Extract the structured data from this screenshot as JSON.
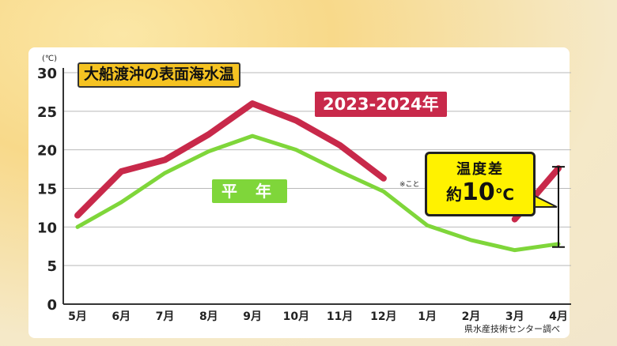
{
  "chart_data": {
    "type": "line",
    "title": "大船渡沖の表面海水温",
    "unit_label": "(℃)",
    "categories": [
      "5月",
      "6月",
      "7月",
      "8月",
      "9月",
      "10月",
      "11月",
      "12月",
      "1月",
      "2月",
      "3月",
      "4月"
    ],
    "ylim": [
      0,
      30
    ],
    "yticks": [
      0,
      5,
      10,
      15,
      20,
      25,
      30
    ],
    "grid": true,
    "series": [
      {
        "name": "2023-2024年",
        "color": "#c8294a",
        "values": [
          11.5,
          17.2,
          18.7,
          22.0,
          26.0,
          23.8,
          20.6,
          16.3,
          null,
          null,
          11.0,
          17.6
        ]
      },
      {
        "name": "平 年",
        "color": "#7fd63a",
        "values": [
          10.0,
          13.2,
          17.0,
          19.8,
          21.8,
          20.0,
          17.2,
          14.6,
          10.2,
          8.3,
          7.0,
          7.8
        ]
      }
    ],
    "annotation": {
      "line1": "温度差",
      "line2_prefix": "約",
      "line2_value": "10",
      "line2_unit": "℃",
      "range": [
        7.4,
        17.8
      ]
    },
    "note_mark": "※こと",
    "source": "県水産技術センター調べ"
  }
}
